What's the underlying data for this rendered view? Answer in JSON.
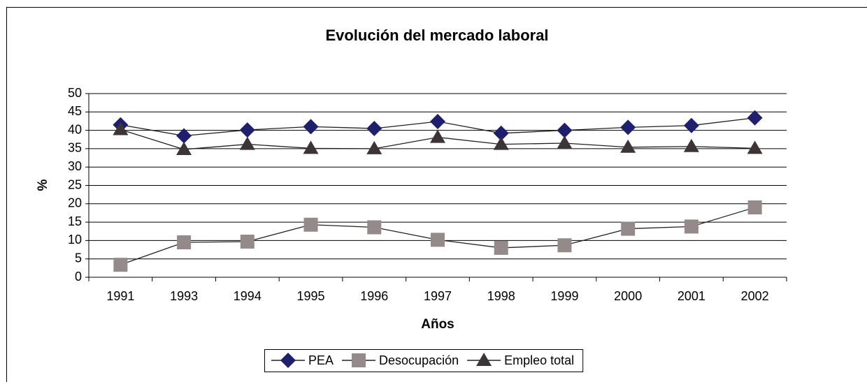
{
  "chart_data": {
    "type": "line",
    "title": "Evolución del mercado laboral",
    "x_label": "Años",
    "y_label": "%",
    "categories": [
      "1991",
      "1993",
      "1994",
      "1995",
      "1996",
      "1997",
      "1998",
      "1999",
      "2000",
      "2001",
      "2002"
    ],
    "series": [
      {
        "name": "PEA",
        "color": "#1f1f6e",
        "marker": "diamond",
        "values": [
          41.5,
          38.5,
          40.1,
          41.0,
          40.5,
          42.4,
          39.2,
          40.0,
          40.8,
          41.3,
          43.4
        ]
      },
      {
        "name": "Desocupación",
        "color": "#948a8a",
        "marker": "square",
        "values": [
          3.4,
          9.5,
          9.7,
          14.3,
          13.6,
          10.2,
          8.0,
          8.7,
          13.2,
          13.8,
          19.0
        ]
      },
      {
        "name": "Empleo total",
        "color": "#3d3535",
        "marker": "triangle",
        "values": [
          40.2,
          34.8,
          36.2,
          35.1,
          35.0,
          38.1,
          36.2,
          36.5,
          35.4,
          35.6,
          35.1
        ]
      }
    ],
    "line_color": "#222222",
    "ylim": [
      0,
      50
    ],
    "yticks": [
      0,
      5,
      10,
      15,
      20,
      25,
      30,
      35,
      40,
      45,
      50
    ],
    "grid": true,
    "legend": "bottom"
  }
}
